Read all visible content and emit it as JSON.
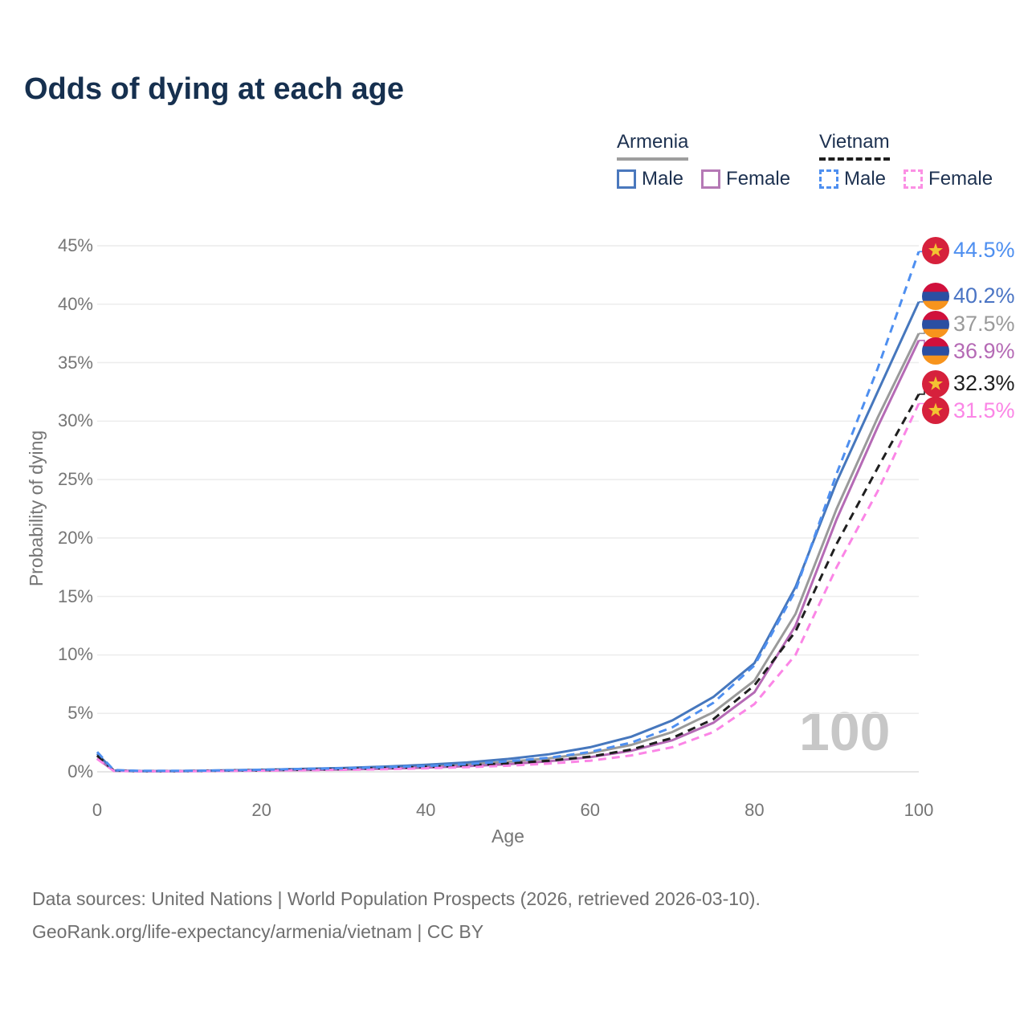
{
  "title": "Odds of dying at each age",
  "watermark": "100",
  "legend": {
    "groups": [
      {
        "name": "Armenia",
        "line_style": "solid",
        "line_color": "#9e9e9e",
        "items": [
          {
            "label": "Male",
            "color": "#4a78bd",
            "dashed": false
          },
          {
            "label": "Female",
            "color": "#b579b5",
            "dashed": false
          }
        ]
      },
      {
        "name": "Vietnam",
        "line_style": "dashed",
        "line_color": "#1f1f1f",
        "items": [
          {
            "label": "Male",
            "color": "#4e8ff0",
            "dashed": true
          },
          {
            "label": "Female",
            "color": "#fb90e4",
            "dashed": true
          }
        ]
      }
    ]
  },
  "chart_data": {
    "type": "line",
    "title": "Odds of dying at each age",
    "xlabel": "Age",
    "ylabel": "Probability of dying",
    "xlim": [
      0,
      100
    ],
    "ylim": [
      0,
      45
    ],
    "x_ticks": [
      0,
      20,
      40,
      60,
      80,
      100
    ],
    "y_ticks_pct": [
      0,
      5,
      10,
      15,
      20,
      25,
      30,
      35,
      40,
      45
    ],
    "y_tick_suffix": "%",
    "grid": "horizontal",
    "legend_position": "top-right",
    "ages": [
      0,
      2,
      5,
      10,
      15,
      20,
      25,
      30,
      35,
      40,
      45,
      50,
      55,
      60,
      65,
      70,
      75,
      80,
      85,
      90,
      95,
      100
    ],
    "series": [
      {
        "name": "Armenia Both sexes",
        "country": "armenia",
        "sex": "both",
        "color": "#9a9a9a",
        "dashed": false,
        "end_label": "37.5%",
        "end_value_pct": 37.5,
        "label_center_pct": 38.3,
        "values": [
          1.35,
          0.1,
          0.06,
          0.06,
          0.1,
          0.14,
          0.2,
          0.26,
          0.36,
          0.48,
          0.63,
          0.85,
          1.15,
          1.6,
          2.3,
          3.4,
          5.1,
          7.8,
          13.5,
          22.5,
          30.3,
          37.5
        ]
      },
      {
        "name": "Armenia Female",
        "country": "armenia",
        "sex": "female",
        "color": "#b56ab5",
        "dashed": false,
        "end_label": "36.9%",
        "end_value_pct": 36.9,
        "label_center_pct": 36.0,
        "values": [
          1.15,
          0.09,
          0.05,
          0.05,
          0.08,
          0.11,
          0.15,
          0.2,
          0.27,
          0.36,
          0.48,
          0.65,
          0.9,
          1.25,
          1.8,
          2.7,
          4.2,
          6.8,
          12.5,
          21.6,
          29.5,
          36.9
        ]
      },
      {
        "name": "Armenia Male",
        "country": "armenia",
        "sex": "male",
        "color": "#4677bd",
        "dashed": false,
        "end_label": "40.2%",
        "end_value_pct": 40.2,
        "label_center_pct": 40.7,
        "values": [
          1.55,
          0.12,
          0.07,
          0.07,
          0.12,
          0.17,
          0.25,
          0.32,
          0.45,
          0.6,
          0.8,
          1.1,
          1.5,
          2.1,
          3.0,
          4.4,
          6.4,
          9.3,
          15.8,
          24.8,
          32.5,
          40.2
        ]
      },
      {
        "name": "Vietnam Both sexes",
        "country": "vietnam",
        "sex": "both",
        "color": "#1f1f1f",
        "dashed": true,
        "end_label": "32.3%",
        "end_value_pct": 32.3,
        "label_center_pct": 33.2,
        "values": [
          1.4,
          0.12,
          0.06,
          0.06,
          0.1,
          0.14,
          0.19,
          0.24,
          0.32,
          0.42,
          0.55,
          0.72,
          0.95,
          1.3,
          1.9,
          2.9,
          4.5,
          7.4,
          12.0,
          19.5,
          26.0,
          32.3
        ]
      },
      {
        "name": "Vietnam Female",
        "country": "vietnam",
        "sex": "female",
        "color": "#fb85e6",
        "dashed": true,
        "end_label": "31.5%",
        "end_value_pct": 31.5,
        "label_center_pct": 30.9,
        "values": [
          1.1,
          0.08,
          0.05,
          0.05,
          0.07,
          0.1,
          0.13,
          0.17,
          0.22,
          0.3,
          0.4,
          0.52,
          0.7,
          0.95,
          1.4,
          2.1,
          3.4,
          5.8,
          10.0,
          17.5,
          24.0,
          31.5
        ]
      },
      {
        "name": "Vietnam Male",
        "country": "vietnam",
        "sex": "male",
        "color": "#4e8ff0",
        "dashed": true,
        "end_label": "44.5%",
        "end_value_pct": 44.5,
        "label_center_pct": 44.6,
        "values": [
          1.7,
          0.15,
          0.08,
          0.08,
          0.12,
          0.18,
          0.25,
          0.3,
          0.4,
          0.5,
          0.65,
          0.9,
          1.2,
          1.7,
          2.5,
          3.8,
          5.9,
          9.1,
          15.5,
          25.5,
          34.5,
          44.5
        ]
      }
    ]
  },
  "flags": {
    "armenia": {
      "stripes": [
        "#d0103c",
        "#2b4fa2",
        "#f7941d"
      ]
    },
    "vietnam": {
      "bg": "#d6213c",
      "star": "#f3c332"
    }
  },
  "footer": {
    "line1": "Data sources: United Nations | World Population Prospects (2026, retrieved 2026-03-10).",
    "line2": "GeoRank.org/life-expectancy/armenia/vietnam | CC BY"
  }
}
